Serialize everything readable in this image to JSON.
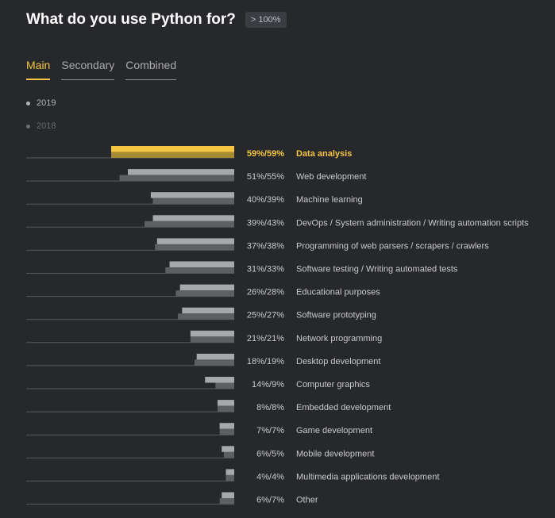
{
  "header": {
    "title": "What do you use Python for?",
    "badge": "> 100%"
  },
  "tabs": [
    {
      "label": "Main",
      "active": true
    },
    {
      "label": "Secondary",
      "active": false
    },
    {
      "label": "Combined",
      "active": false
    }
  ],
  "legend": [
    {
      "label": "2019",
      "color": "#b4b5b9"
    },
    {
      "label": "2018",
      "color": "#6b6c70"
    }
  ],
  "colors": {
    "highlight_2019": "#f4c540",
    "highlight_2018": "#a48a33",
    "bar_2019": "#a7a8ac",
    "bar_2018": "#5e5f63",
    "baseline": "#5a5b5f",
    "label": "#c9cacd",
    "highlight_label": "#f4c540"
  },
  "chart_data": {
    "type": "bar",
    "orientation": "horizontal",
    "categories": [
      "Data analysis",
      "Web development",
      "Machine learning",
      "DevOps / System administration / Writing automation scripts",
      "Programming of web parsers / scrapers / crawlers",
      "Software testing / Writing automated tests",
      "Educational purposes",
      "Software prototyping",
      "Network programming",
      "Desktop development",
      "Computer graphics",
      "Embedded development",
      "Game development",
      "Mobile development",
      "Multimedia applications development",
      "Other"
    ],
    "series": [
      {
        "name": "2019",
        "values": [
          59,
          51,
          40,
          39,
          37,
          31,
          26,
          25,
          21,
          18,
          14,
          8,
          7,
          6,
          4,
          6
        ]
      },
      {
        "name": "2018",
        "values": [
          59,
          55,
          39,
          43,
          38,
          33,
          28,
          27,
          21,
          19,
          9,
          8,
          7,
          5,
          4,
          7
        ]
      }
    ],
    "value_labels": [
      "59%/59%",
      "51%/55%",
      "40%/39%",
      "39%/43%",
      "37%/38%",
      "31%/33%",
      "26%/28%",
      "25%/27%",
      "21%/21%",
      "18%/19%",
      "14%/9%",
      "8%/8%",
      "7%/7%",
      "6%/5%",
      "4%/4%",
      "6%/7%"
    ],
    "highlighted_category": "Data analysis",
    "bars_grow_from": "right",
    "grid": false
  }
}
